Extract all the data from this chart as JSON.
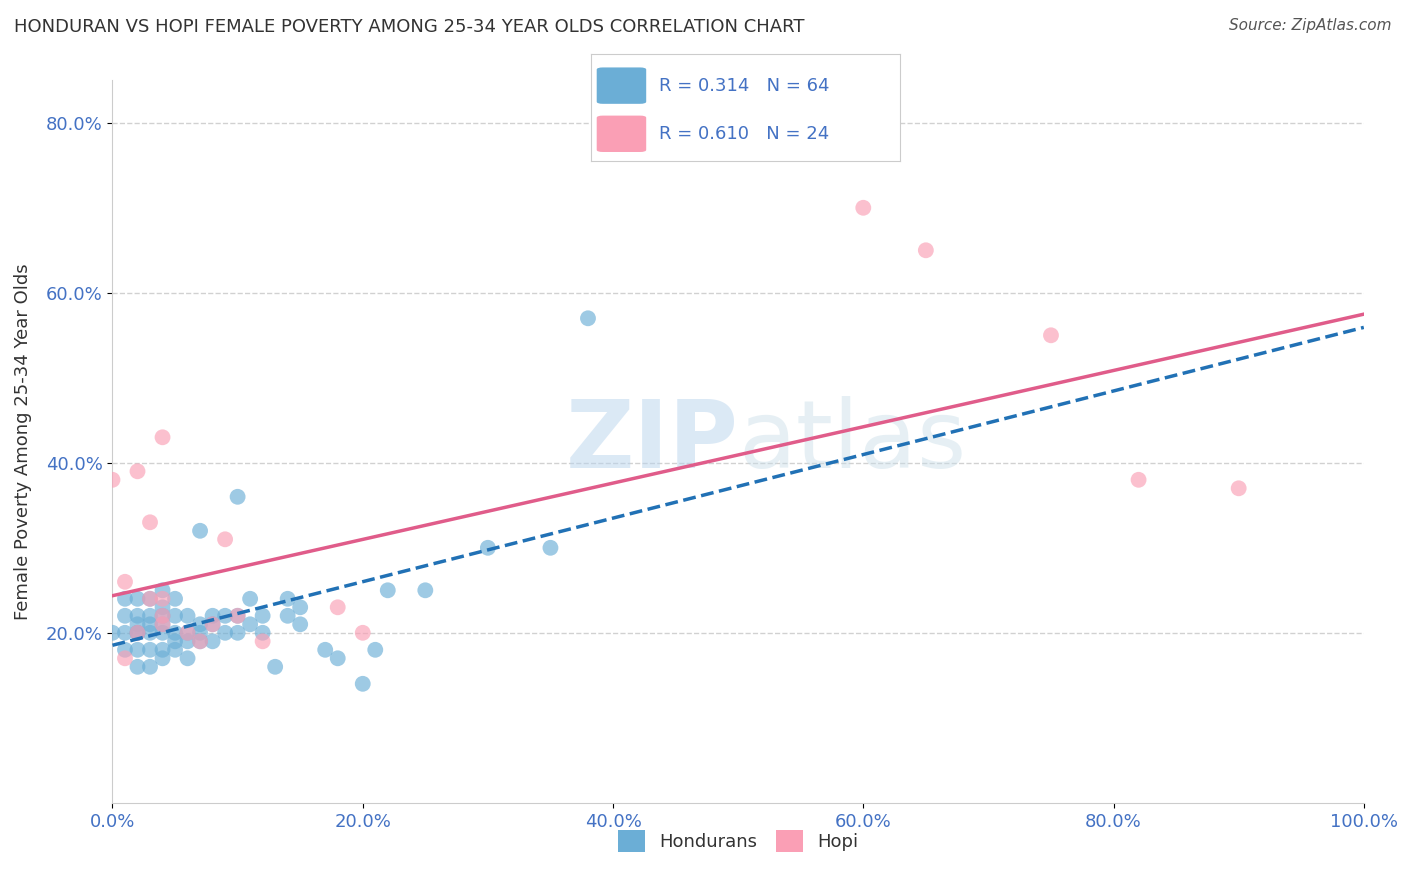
{
  "title": "HONDURAN VS HOPI FEMALE POVERTY AMONG 25-34 YEAR OLDS CORRELATION CHART",
  "source": "Source: ZipAtlas.com",
  "xlabel": "",
  "ylabel": "Female Poverty Among 25-34 Year Olds",
  "watermark_zip": "ZIP",
  "watermark_atlas": "atlas",
  "honduran_R": 0.314,
  "honduran_N": 64,
  "hopi_R": 0.61,
  "hopi_N": 24,
  "honduran_color": "#6baed6",
  "hopi_color": "#fa9fb5",
  "honduran_line_color": "#2171b5",
  "hopi_line_color": "#e05c8a",
  "xlim": [
    0,
    1.0
  ],
  "ylim": [
    0,
    0.85
  ],
  "xticks": [
    0.0,
    0.2,
    0.4,
    0.6,
    0.8,
    1.0
  ],
  "yticks": [
    0.2,
    0.4,
    0.6,
    0.8
  ],
  "xticklabels": [
    "0.0%",
    "20.0%",
    "40.0%",
    "60.0%",
    "80.0%",
    "100.0%"
  ],
  "yticklabels": [
    "20.0%",
    "40.0%",
    "60.0%",
    "80.0%"
  ],
  "honduran_x": [
    0.0,
    0.01,
    0.01,
    0.01,
    0.01,
    0.02,
    0.02,
    0.02,
    0.02,
    0.02,
    0.02,
    0.02,
    0.03,
    0.03,
    0.03,
    0.03,
    0.03,
    0.03,
    0.04,
    0.04,
    0.04,
    0.04,
    0.04,
    0.04,
    0.04,
    0.05,
    0.05,
    0.05,
    0.05,
    0.05,
    0.06,
    0.06,
    0.06,
    0.06,
    0.07,
    0.07,
    0.07,
    0.07,
    0.08,
    0.08,
    0.08,
    0.09,
    0.09,
    0.1,
    0.1,
    0.1,
    0.11,
    0.11,
    0.12,
    0.12,
    0.13,
    0.14,
    0.14,
    0.15,
    0.15,
    0.17,
    0.18,
    0.2,
    0.21,
    0.22,
    0.25,
    0.3,
    0.35,
    0.38
  ],
  "honduran_y": [
    0.2,
    0.18,
    0.2,
    0.22,
    0.24,
    0.16,
    0.18,
    0.2,
    0.2,
    0.21,
    0.22,
    0.24,
    0.16,
    0.18,
    0.2,
    0.21,
    0.22,
    0.24,
    0.17,
    0.18,
    0.2,
    0.21,
    0.22,
    0.23,
    0.25,
    0.18,
    0.19,
    0.2,
    0.22,
    0.24,
    0.17,
    0.19,
    0.2,
    0.22,
    0.19,
    0.2,
    0.21,
    0.32,
    0.19,
    0.21,
    0.22,
    0.2,
    0.22,
    0.2,
    0.22,
    0.36,
    0.21,
    0.24,
    0.2,
    0.22,
    0.16,
    0.22,
    0.24,
    0.21,
    0.23,
    0.18,
    0.17,
    0.14,
    0.18,
    0.25,
    0.25,
    0.3,
    0.3,
    0.57
  ],
  "hopi_x": [
    0.0,
    0.01,
    0.01,
    0.02,
    0.02,
    0.03,
    0.03,
    0.04,
    0.04,
    0.04,
    0.04,
    0.06,
    0.07,
    0.08,
    0.09,
    0.1,
    0.12,
    0.18,
    0.2,
    0.6,
    0.65,
    0.75,
    0.82,
    0.9
  ],
  "hopi_y": [
    0.38,
    0.17,
    0.26,
    0.2,
    0.39,
    0.24,
    0.33,
    0.21,
    0.22,
    0.24,
    0.43,
    0.2,
    0.19,
    0.21,
    0.31,
    0.22,
    0.19,
    0.23,
    0.2,
    0.7,
    0.65,
    0.55,
    0.38,
    0.37
  ],
  "background_color": "#ffffff",
  "grid_color": "#cccccc",
  "tick_color": "#4472c4",
  "title_color": "#333333",
  "legend_color": "#4472c4"
}
